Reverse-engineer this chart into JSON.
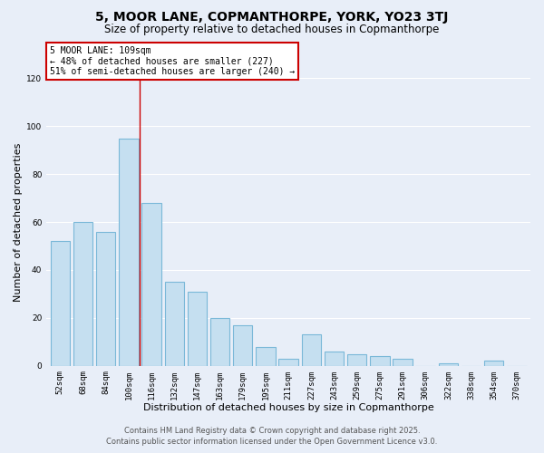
{
  "title": "5, MOOR LANE, COPMANTHORPE, YORK, YO23 3TJ",
  "subtitle": "Size of property relative to detached houses in Copmanthorpe",
  "xlabel": "Distribution of detached houses by size in Copmanthorpe",
  "ylabel": "Number of detached properties",
  "bar_color": "#c5dff0",
  "bar_edge_color": "#7ab8d8",
  "background_color": "#e8eef8",
  "grid_color": "#ffffff",
  "categories": [
    "52sqm",
    "68sqm",
    "84sqm",
    "100sqm",
    "116sqm",
    "132sqm",
    "147sqm",
    "163sqm",
    "179sqm",
    "195sqm",
    "211sqm",
    "227sqm",
    "243sqm",
    "259sqm",
    "275sqm",
    "291sqm",
    "306sqm",
    "322sqm",
    "338sqm",
    "354sqm",
    "370sqm"
  ],
  "values": [
    52,
    60,
    56,
    95,
    68,
    35,
    31,
    20,
    17,
    8,
    3,
    13,
    6,
    5,
    4,
    3,
    0,
    1,
    0,
    2,
    0
  ],
  "annotation_title": "5 MOOR LANE: 109sqm",
  "annotation_line2": "← 48% of detached houses are smaller (227)",
  "annotation_line3": "51% of semi-detached houses are larger (240) →",
  "annotation_box_color": "#ffffff",
  "annotation_box_edge_color": "#cc0000",
  "vline_color": "#cc0000",
  "vline_x_index": 3.5,
  "ylim": [
    0,
    120
  ],
  "yticks": [
    0,
    20,
    40,
    60,
    80,
    100,
    120
  ],
  "footer_line1": "Contains HM Land Registry data © Crown copyright and database right 2025.",
  "footer_line2": "Contains public sector information licensed under the Open Government Licence v3.0.",
  "title_fontsize": 10,
  "subtitle_fontsize": 8.5,
  "axis_label_fontsize": 8,
  "tick_fontsize": 6.5,
  "annotation_fontsize": 7,
  "footer_fontsize": 6
}
